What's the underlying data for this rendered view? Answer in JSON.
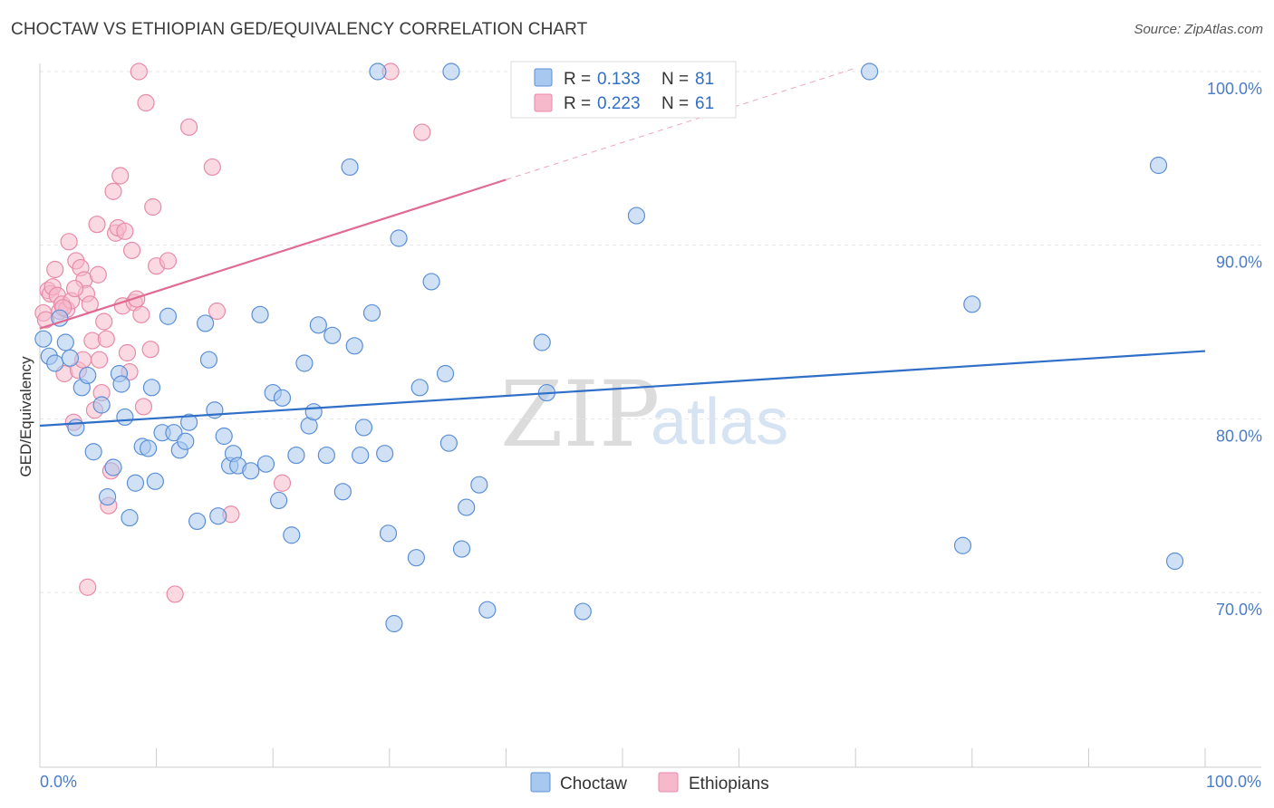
{
  "title": "CHOCTAW VS ETHIOPIAN GED/EQUIVALENCY CORRELATION CHART",
  "source": "Source: ZipAtlas.com",
  "watermark": {
    "zip": "ZIP",
    "atlas": "atlas"
  },
  "colors": {
    "choctaw_fill": "#a9c8ef",
    "choctaw_stroke": "#5b8fd6",
    "choctaw_line": "#2f6fc8",
    "ethiopian_fill": "#f6b9cc",
    "ethiopian_stroke": "#e88aa8",
    "ethiopian_line": "#e06a93"
  },
  "legend": {
    "r_label": "R =",
    "n_label": "N =",
    "choctaw": {
      "r": "0.133",
      "n": "81"
    },
    "ethiopian": {
      "r": "0.223",
      "n": "61"
    }
  },
  "chart_data": {
    "type": "scatter",
    "title": "CHOCTAW VS ETHIOPIAN GED/EQUIVALENCY CORRELATION CHART",
    "xlabel": "",
    "ylabel": "GED/Equivalency",
    "xlim": [
      0,
      100
    ],
    "ylim": [
      60.0,
      101.5
    ],
    "x_tick_labels": [
      "0.0%",
      "100.0%"
    ],
    "y_ticks": [
      70,
      80,
      90,
      100
    ],
    "y_tick_labels": [
      "70.0%",
      "80.0%",
      "90.0%",
      "100.0%"
    ],
    "grid": true,
    "legend_position": "top-center",
    "series": [
      {
        "name": "Choctaw",
        "r": 0.133,
        "n": 81,
        "trend": {
          "x0": 0,
          "y0": 79.6,
          "x1": 100,
          "y1": 83.9,
          "solid_to": 100
        },
        "points": [
          [
            0.3,
            84.6
          ],
          [
            0.8,
            83.6
          ],
          [
            1.3,
            83.2
          ],
          [
            1.7,
            85.8
          ],
          [
            2.2,
            84.4
          ],
          [
            2.6,
            83.5
          ],
          [
            3.1,
            79.5
          ],
          [
            3.6,
            81.8
          ],
          [
            4.1,
            82.5
          ],
          [
            4.6,
            78.1
          ],
          [
            5.3,
            80.8
          ],
          [
            5.8,
            75.5
          ],
          [
            6.3,
            77.2
          ],
          [
            6.8,
            82.6
          ],
          [
            7.3,
            80.1
          ],
          [
            7.7,
            74.3
          ],
          [
            8.2,
            76.3
          ],
          [
            8.8,
            78.4
          ],
          [
            9.3,
            78.3
          ],
          [
            9.6,
            81.8
          ],
          [
            9.9,
            76.4
          ],
          [
            10.5,
            79.2
          ],
          [
            11.0,
            85.9
          ],
          [
            11.5,
            79.2
          ],
          [
            12.0,
            78.2
          ],
          [
            12.5,
            78.7
          ],
          [
            12.8,
            79.8
          ],
          [
            13.5,
            74.1
          ],
          [
            14.2,
            85.5
          ],
          [
            14.5,
            83.4
          ],
          [
            15.0,
            80.5
          ],
          [
            15.3,
            74.4
          ],
          [
            15.8,
            79.0
          ],
          [
            16.3,
            77.3
          ],
          [
            16.6,
            78.0
          ],
          [
            17.0,
            77.3
          ],
          [
            18.1,
            77.0
          ],
          [
            18.9,
            86.0
          ],
          [
            19.4,
            77.4
          ],
          [
            20.0,
            81.5
          ],
          [
            20.5,
            75.3
          ],
          [
            20.8,
            81.2
          ],
          [
            21.6,
            73.3
          ],
          [
            22.0,
            77.9
          ],
          [
            22.7,
            83.2
          ],
          [
            23.1,
            79.6
          ],
          [
            23.5,
            80.4
          ],
          [
            23.9,
            85.4
          ],
          [
            24.6,
            77.9
          ],
          [
            25.1,
            84.8
          ],
          [
            26.0,
            75.8
          ],
          [
            26.6,
            94.5
          ],
          [
            27.0,
            84.2
          ],
          [
            27.5,
            77.9
          ],
          [
            27.8,
            79.5
          ],
          [
            28.5,
            86.1
          ],
          [
            29.0,
            100.0
          ],
          [
            29.6,
            78.0
          ],
          [
            29.9,
            73.4
          ],
          [
            30.4,
            68.2
          ],
          [
            30.8,
            90.4
          ],
          [
            32.3,
            72.0
          ],
          [
            32.6,
            81.8
          ],
          [
            33.6,
            87.9
          ],
          [
            34.8,
            82.6
          ],
          [
            35.1,
            78.6
          ],
          [
            35.3,
            100.0
          ],
          [
            36.2,
            72.5
          ],
          [
            36.6,
            74.9
          ],
          [
            37.7,
            76.2
          ],
          [
            38.4,
            69.0
          ],
          [
            43.1,
            84.4
          ],
          [
            43.5,
            81.5
          ],
          [
            46.6,
            68.9
          ],
          [
            51.2,
            91.7
          ],
          [
            71.2,
            100.0
          ],
          [
            79.2,
            72.7
          ],
          [
            80.0,
            86.6
          ],
          [
            96.0,
            94.6
          ],
          [
            97.4,
            71.8
          ],
          [
            7.0,
            82.0
          ]
        ]
      },
      {
        "name": "Ethiopians",
        "r": 0.223,
        "n": 61,
        "trend": {
          "x0": 0,
          "y0": 85.2,
          "x1": 70,
          "y1": 100.2,
          "solid_to": 40
        },
        "points": [
          [
            0.3,
            86.1
          ],
          [
            0.5,
            85.7
          ],
          [
            0.7,
            87.4
          ],
          [
            0.9,
            87.2
          ],
          [
            1.1,
            87.6
          ],
          [
            1.3,
            88.6
          ],
          [
            1.5,
            87.1
          ],
          [
            1.7,
            86.2
          ],
          [
            1.9,
            86.6
          ],
          [
            2.1,
            82.6
          ],
          [
            2.3,
            86.3
          ],
          [
            2.5,
            90.2
          ],
          [
            2.7,
            86.8
          ],
          [
            2.9,
            79.8
          ],
          [
            3.1,
            89.1
          ],
          [
            3.3,
            82.8
          ],
          [
            3.5,
            88.7
          ],
          [
            3.7,
            83.4
          ],
          [
            3.8,
            88.0
          ],
          [
            4.0,
            87.2
          ],
          [
            4.1,
            70.3
          ],
          [
            4.3,
            86.6
          ],
          [
            4.5,
            84.5
          ],
          [
            4.7,
            80.5
          ],
          [
            4.9,
            91.2
          ],
          [
            5.1,
            83.4
          ],
          [
            5.3,
            81.5
          ],
          [
            5.5,
            85.6
          ],
          [
            5.7,
            84.6
          ],
          [
            5.9,
            75.0
          ],
          [
            6.1,
            77.0
          ],
          [
            6.3,
            93.1
          ],
          [
            6.5,
            90.7
          ],
          [
            6.7,
            91.0
          ],
          [
            6.9,
            94.0
          ],
          [
            7.1,
            86.5
          ],
          [
            7.3,
            90.8
          ],
          [
            7.5,
            83.8
          ],
          [
            7.7,
            82.7
          ],
          [
            7.9,
            89.7
          ],
          [
            8.1,
            86.7
          ],
          [
            8.3,
            86.9
          ],
          [
            8.5,
            100.0
          ],
          [
            8.7,
            86.0
          ],
          [
            8.9,
            80.7
          ],
          [
            9.1,
            98.2
          ],
          [
            9.5,
            84.0
          ],
          [
            9.7,
            92.2
          ],
          [
            10.0,
            88.8
          ],
          [
            11.0,
            89.1
          ],
          [
            11.6,
            69.9
          ],
          [
            12.8,
            96.8
          ],
          [
            14.8,
            94.5
          ],
          [
            15.2,
            86.2
          ],
          [
            16.4,
            74.5
          ],
          [
            20.8,
            76.3
          ],
          [
            30.1,
            100.0
          ],
          [
            32.8,
            96.5
          ],
          [
            5.0,
            88.3
          ],
          [
            3.0,
            87.5
          ],
          [
            2.0,
            86.4
          ]
        ]
      }
    ]
  },
  "bottom_legend": [
    {
      "name": "Choctaw"
    },
    {
      "name": "Ethiopians"
    }
  ]
}
